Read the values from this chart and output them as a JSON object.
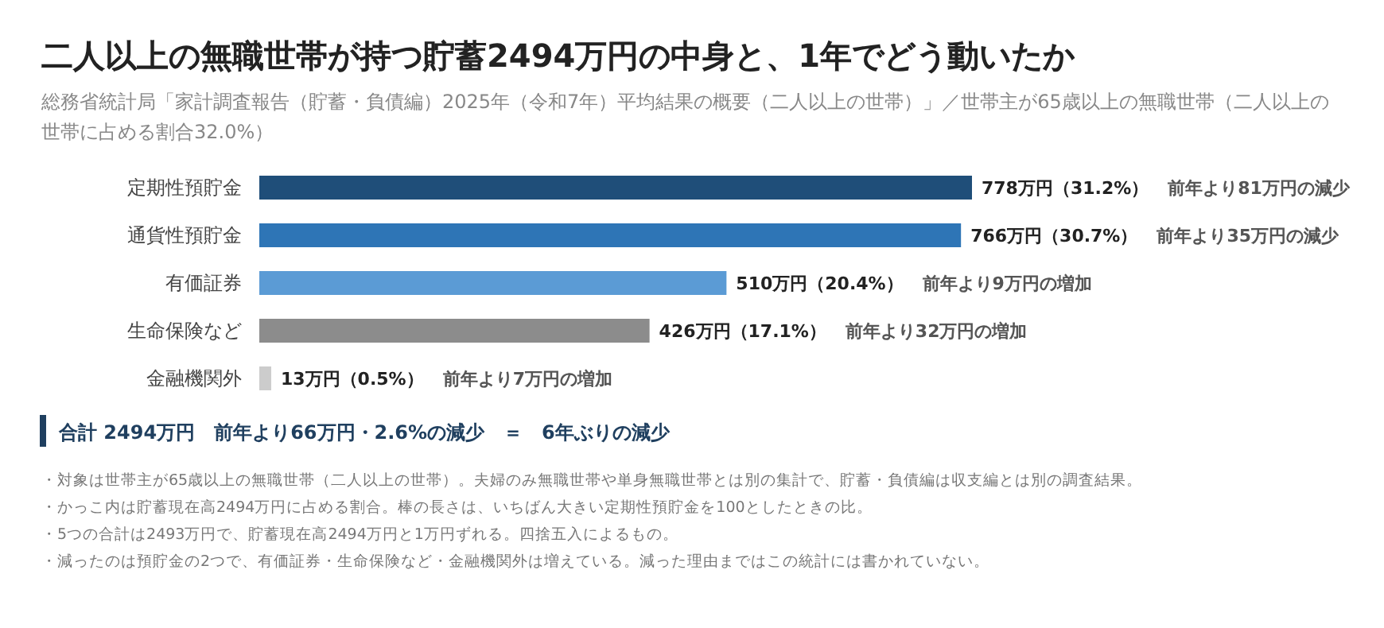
{
  "chart_data": {
    "type": "bar",
    "orientation": "horizontal",
    "title": "二人以上の無職世帯が持つ貯蓄2494万円の中身と、1年でどう動いたか",
    "subtitle": "総務省統計局「家計調査報告（貯蓄・負債編）2025年（令和7年）平均結果の概要（二人以上の世帯）」／世帯主が65歳以上の無職世帯（二人以上の世帯に占める割合32.0%）",
    "categories": [
      "定期性預貯金",
      "通貨性預貯金",
      "有価証券",
      "生命保険など",
      "金融機関外"
    ],
    "values": [
      778,
      766,
      510,
      426,
      13
    ],
    "colors": [
      "#1f4e79",
      "#2e75b6",
      "#5b9bd5",
      "#8c8c8c",
      "#cccccc"
    ],
    "value_labels": [
      "778万円（31.2%）",
      "766万円（30.7%）",
      "510万円（20.4%）",
      "426万円（17.1%）",
      "13万円（0.5%）"
    ],
    "xlim": [
      0,
      778
    ],
    "tick_labels": "y",
    "annotations": [
      "前年より81万円の減少",
      "前年より35万円の減少",
      "前年より9万円の増加",
      "前年より32万円の増加",
      "前年より7万円の増加",
      "合計 2494万円　前年より66万円・2.6%の減少　＝　6年ぶりの減少",
      "・対象は世帯主が65歳以上の無職世帯（二人以上の世帯）。夫婦のみ無職世帯や単身無職世帯とは別の集計で、貯蓄・負債編は収支編とは別の調査結果。",
      "・かっこ内は貯蓄現在高2494万円に占める割合。棒の長さは、いちばん大きい定期性預貯金を100としたときの比。",
      "・5つの合計は2493万円で、貯蓄現在高2494万円と1万円ずれる。四捨五入によるもの。",
      "・減ったのは預貯金の2つで、有価証券・生命保険など・金融機関外は増えている。減った理由まではこの統計には書かれていない。"
    ]
  }
}
